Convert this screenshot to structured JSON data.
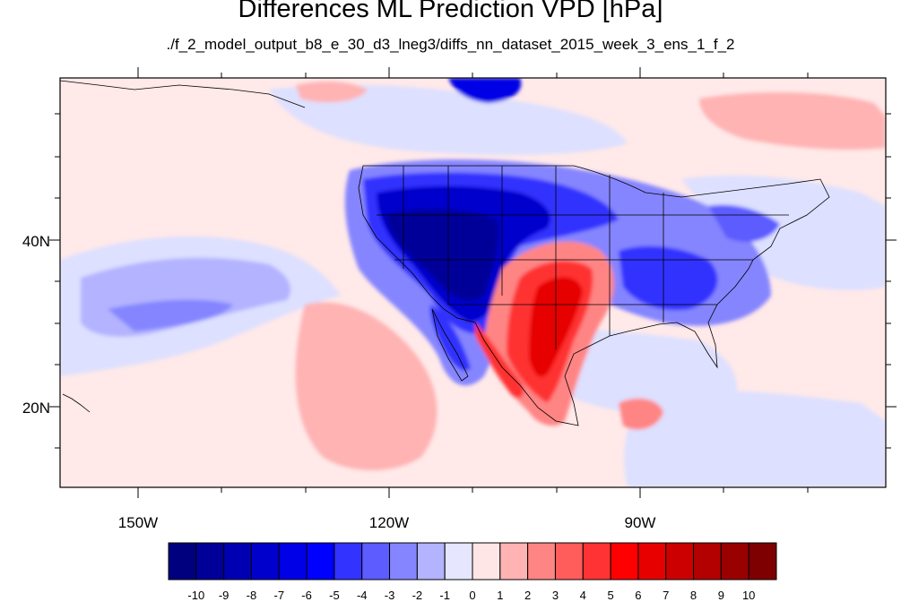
{
  "title": "Differences ML Prediction VPD [hPa]",
  "subtitle": "./f_2_model_output_b8_e_30_d3_lneg3/diffs_nn_dataset_2015_week_3_ens_1_f_2",
  "map": {
    "lon_labels": [
      "150W",
      "120W",
      "90W"
    ],
    "lat_labels": [
      "40N",
      "20N"
    ],
    "lon_range": [
      -159,
      -61
    ],
    "lat_range": [
      11,
      60
    ]
  },
  "colorbar": {
    "tick_labels": [
      "-10",
      "-9",
      "-8",
      "-7",
      "-6",
      "-5",
      "-4",
      "-3",
      "-2",
      "-1",
      "0",
      "1",
      "2",
      "3",
      "4",
      "5",
      "6",
      "7",
      "8",
      "9",
      "10"
    ],
    "colors": [
      "#00007f",
      "#000099",
      "#0000b3",
      "#0000cc",
      "#0000e6",
      "#0000ff",
      "#3333ff",
      "#5c5cff",
      "#8585ff",
      "#b3b3ff",
      "#e6e6ff",
      "#ffe6e6",
      "#ffb3b3",
      "#ff8585",
      "#ff5c5c",
      "#ff3333",
      "#ff0000",
      "#e60000",
      "#cc0000",
      "#b30000",
      "#990000",
      "#7f0000"
    ]
  }
}
